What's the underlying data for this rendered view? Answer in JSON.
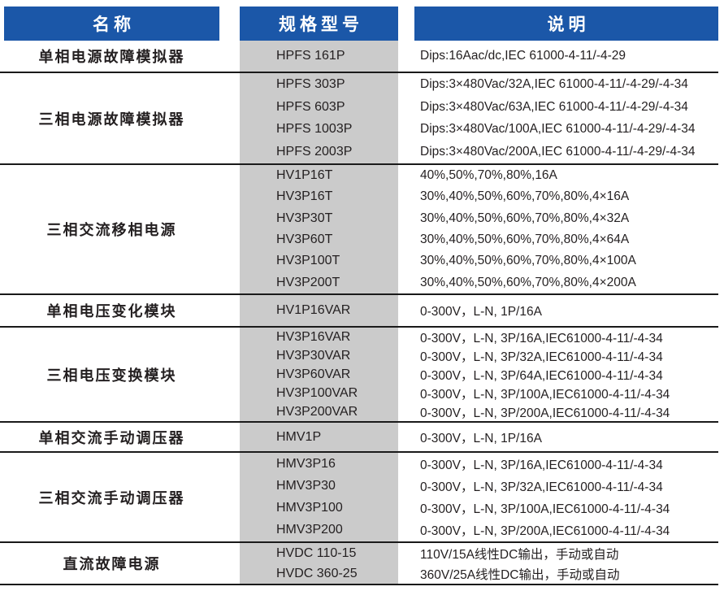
{
  "header": {
    "name": "名称",
    "spec": "规格型号",
    "desc": "说明"
  },
  "colors": {
    "header_bg": "#1B57A8",
    "header_text": "#FFFFFF",
    "spec_column_bg": "#CBCBCB",
    "divider": "#1A1A1A",
    "text": "#231F20"
  },
  "rows": [
    {
      "name": "单相电源故障模拟器",
      "items": [
        {
          "model": "HPFS 161P",
          "desc": "Dips:16Aac/dc,IEC 61000-4-11/-4-29"
        }
      ]
    },
    {
      "name": "三相电源故障模拟器",
      "items": [
        {
          "model": "HPFS 303P",
          "desc": "Dips:3×480Vac/32A,IEC 61000-4-11/-4-29/-4-34"
        },
        {
          "model": "HPFS 603P",
          "desc": "Dips:3×480Vac/63A,IEC 61000-4-11/-4-29/-4-34"
        },
        {
          "model": "HPFS 1003P",
          "desc": "Dips:3×480Vac/100A,IEC 61000-4-11/-4-29/-4-34"
        },
        {
          "model": "HPFS 2003P",
          "desc": "Dips:3×480Vac/200A,IEC 61000-4-11/-4-29/-4-34"
        }
      ]
    },
    {
      "name": "三相交流移相电源",
      "items": [
        {
          "model": "HV1P16T",
          "desc": "40%,50%,70%,80%,16A"
        },
        {
          "model": "HV3P16T",
          "desc": "30%,40%,50%,60%,70%,80%,4×16A"
        },
        {
          "model": "HV3P30T",
          "desc": "30%,40%,50%,60%,70%,80%,4×32A"
        },
        {
          "model": "HV3P60T",
          "desc": "30%,40%,50%,60%,70%,80%,4×64A"
        },
        {
          "model": "HV3P100T",
          "desc": "30%,40%,50%,60%,70%,80%,4×100A"
        },
        {
          "model": "HV3P200T",
          "desc": "30%,40%,50%,60%,70%,80%,4×200A"
        }
      ]
    },
    {
      "name": "单相电压变化模块",
      "items": [
        {
          "model": "HV1P16VAR",
          "desc": "0-300V，L-N, 1P/16A"
        }
      ]
    },
    {
      "name": "三相电压变换模块",
      "items": [
        {
          "model": "HV3P16VAR",
          "desc": "0-300V，L-N, 3P/16A,IEC61000-4-11/-4-34"
        },
        {
          "model": "HV3P30VAR",
          "desc": "0-300V，L-N, 3P/32A,IEC61000-4-11/-4-34"
        },
        {
          "model": "HV3P60VAR",
          "desc": "0-300V，L-N, 3P/64A,IEC61000-4-11/-4-34"
        },
        {
          "model": "HV3P100VAR",
          "desc": "0-300V，L-N, 3P/100A,IEC61000-4-11/-4-34"
        },
        {
          "model": "HV3P200VAR",
          "desc": "0-300V，L-N, 3P/200A,IEC61000-4-11/-4-34"
        }
      ]
    },
    {
      "name": "单相交流手动调压器",
      "items": [
        {
          "model": "HMV1P",
          "desc": "0-300V，L-N, 1P/16A"
        }
      ]
    },
    {
      "name": "三相交流手动调压器",
      "items": [
        {
          "model": "HMV3P16",
          "desc": "0-300V，L-N, 3P/16A,IEC61000-4-11/-4-34"
        },
        {
          "model": "HMV3P30",
          "desc": "0-300V，L-N, 3P/32A,IEC61000-4-11/-4-34"
        },
        {
          "model": "HMV3P100",
          "desc": "0-300V，L-N, 3P/100A,IEC61000-4-11/-4-34"
        },
        {
          "model": "HMV3P200",
          "desc": "0-300V，L-N, 3P/200A,IEC61000-4-11/-4-34"
        }
      ]
    },
    {
      "name": "直流故障电源",
      "items": [
        {
          "model": "HVDC 110-15",
          "desc": "110V/15A线性DC输出，手动或自动"
        },
        {
          "model": "HVDC 360-25",
          "desc": "360V/25A线性DC输出，手动或自动"
        }
      ]
    }
  ]
}
